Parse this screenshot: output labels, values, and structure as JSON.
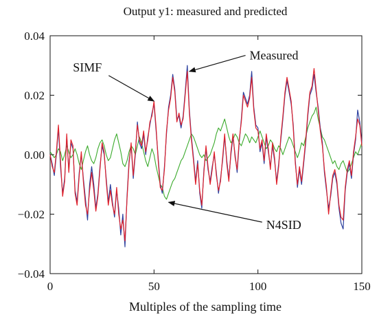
{
  "chart_data": {
    "type": "line",
    "title": "Output y1: measured and predicted",
    "xlabel": "Multiples of the sampling time",
    "ylabel": "",
    "xlim": [
      0,
      150
    ],
    "ylim": [
      -0.04,
      0.04
    ],
    "xticks": [
      0,
      50,
      100,
      150
    ],
    "xtick_labels": [
      "0",
      "50",
      "100",
      "150"
    ],
    "yticks": [
      0.04,
      0.02,
      0.0,
      -0.02,
      -0.04
    ],
    "ytick_labels": [
      "0.04",
      "0.02",
      "0.00",
      "−0.02",
      "−0.04"
    ],
    "grid": false,
    "x": [
      0,
      1,
      2,
      3,
      4,
      5,
      6,
      7,
      8,
      9,
      10,
      11,
      12,
      13,
      14,
      15,
      16,
      17,
      18,
      19,
      20,
      21,
      22,
      23,
      24,
      25,
      26,
      27,
      28,
      29,
      30,
      31,
      32,
      33,
      34,
      35,
      36,
      37,
      38,
      39,
      40,
      41,
      42,
      43,
      44,
      45,
      46,
      47,
      48,
      49,
      50,
      51,
      52,
      53,
      54,
      55,
      56,
      57,
      58,
      59,
      60,
      61,
      62,
      63,
      64,
      65,
      66,
      67,
      68,
      69,
      70,
      71,
      72,
      73,
      74,
      75,
      76,
      77,
      78,
      79,
      80,
      81,
      82,
      83,
      84,
      85,
      86,
      87,
      88,
      89,
      90,
      91,
      92,
      93,
      94,
      95,
      96,
      97,
      98,
      99,
      100,
      101,
      102,
      103,
      104,
      105,
      106,
      107,
      108,
      109,
      110,
      111,
      112,
      113,
      114,
      115,
      116,
      117,
      118,
      119,
      120,
      121,
      122,
      123,
      124,
      125,
      126,
      127,
      128,
      129,
      130,
      131,
      132,
      133,
      134,
      135,
      136,
      137,
      138,
      139,
      140,
      141,
      142,
      143,
      144,
      145,
      146,
      147,
      148,
      149,
      150
    ],
    "series": [
      {
        "name": "Measured",
        "color": "#2b3f9e",
        "values": [
          0.0,
          -0.003,
          -0.007,
          0.0,
          0.009,
          -0.004,
          -0.013,
          -0.008,
          0.006,
          -0.005,
          0.004,
          0.002,
          -0.012,
          -0.016,
          -0.006,
          0.0,
          -0.008,
          -0.015,
          -0.022,
          -0.01,
          -0.004,
          -0.01,
          -0.018,
          -0.013,
          -0.004,
          0.003,
          0.0,
          -0.008,
          -0.016,
          -0.01,
          -0.016,
          -0.021,
          -0.012,
          -0.018,
          -0.027,
          -0.02,
          -0.031,
          -0.014,
          -0.002,
          0.003,
          -0.008,
          0.0,
          0.011,
          0.004,
          0.002,
          0.007,
          0.0,
          0.006,
          0.01,
          0.014,
          0.017,
          0.008,
          -0.001,
          -0.01,
          -0.013,
          -0.004,
          0.007,
          0.016,
          0.02,
          0.027,
          0.022,
          0.012,
          0.013,
          0.009,
          0.013,
          0.021,
          0.03,
          0.015,
          0.006,
          -0.001,
          -0.009,
          -0.002,
          -0.013,
          -0.018,
          -0.005,
          0.002,
          -0.005,
          -0.009,
          -0.004,
          0.0,
          -0.006,
          -0.013,
          -0.008,
          -0.002,
          0.006,
          -0.002,
          -0.008,
          0.0,
          0.006,
          0.0,
          -0.006,
          0.004,
          0.012,
          0.021,
          0.019,
          0.017,
          0.02,
          0.028,
          0.016,
          0.01,
          0.009,
          0.001,
          0.004,
          -0.003,
          0.006,
          0.001,
          -0.004,
          0.003,
          -0.002,
          -0.009,
          -0.003,
          0.005,
          0.012,
          0.02,
          0.025,
          0.021,
          0.017,
          0.01,
          -0.002,
          -0.011,
          -0.005,
          -0.01,
          -0.003,
          0.004,
          0.013,
          0.02,
          0.022,
          0.027,
          0.021,
          0.016,
          0.009,
          0.004,
          -0.006,
          -0.012,
          -0.018,
          -0.014,
          -0.008,
          -0.006,
          -0.01,
          -0.018,
          -0.023,
          -0.025,
          -0.012,
          -0.006,
          -0.003,
          -0.008,
          0.0,
          0.005,
          0.015,
          0.011,
          0.004
        ]
      },
      {
        "name": "SIMF",
        "color": "#e0202a",
        "values": [
          0.0,
          -0.004,
          -0.006,
          0.001,
          0.01,
          -0.002,
          -0.014,
          -0.009,
          0.007,
          -0.006,
          0.005,
          0.003,
          -0.013,
          -0.017,
          -0.007,
          0.001,
          -0.009,
          -0.017,
          -0.02,
          -0.012,
          -0.006,
          -0.012,
          -0.019,
          -0.014,
          -0.005,
          0.004,
          0.001,
          -0.009,
          -0.017,
          -0.012,
          -0.017,
          -0.02,
          -0.011,
          -0.02,
          -0.025,
          -0.022,
          -0.029,
          -0.015,
          -0.003,
          0.004,
          -0.007,
          0.001,
          0.01,
          0.005,
          0.003,
          0.008,
          0.001,
          0.005,
          0.011,
          0.013,
          0.018,
          0.009,
          -0.002,
          -0.011,
          -0.012,
          -0.005,
          0.008,
          0.015,
          0.019,
          0.026,
          0.021,
          0.011,
          0.014,
          0.01,
          0.012,
          0.02,
          0.028,
          0.014,
          0.005,
          -0.002,
          -0.01,
          -0.003,
          -0.012,
          -0.017,
          -0.006,
          0.003,
          -0.004,
          -0.01,
          -0.005,
          0.001,
          -0.007,
          -0.012,
          -0.009,
          -0.001,
          0.007,
          -0.003,
          -0.009,
          0.001,
          0.007,
          -0.001,
          -0.005,
          0.005,
          0.011,
          0.02,
          0.018,
          0.016,
          0.019,
          0.026,
          0.015,
          0.009,
          0.008,
          0.002,
          0.005,
          -0.002,
          0.007,
          0.002,
          -0.005,
          0.004,
          -0.001,
          -0.01,
          -0.004,
          0.006,
          0.013,
          0.021,
          0.026,
          0.022,
          0.018,
          0.009,
          -0.003,
          -0.01,
          -0.004,
          -0.009,
          -0.002,
          0.005,
          0.014,
          0.021,
          0.023,
          0.029,
          0.022,
          0.015,
          0.008,
          0.003,
          -0.005,
          -0.011,
          -0.02,
          -0.013,
          -0.007,
          -0.005,
          -0.009,
          -0.017,
          -0.021,
          -0.022,
          -0.011,
          -0.005,
          -0.002,
          -0.007,
          0.001,
          0.006,
          0.012,
          0.01,
          0.003
        ]
      },
      {
        "name": "N4SID",
        "color": "#3aaa2b",
        "values": [
          0.001,
          0.0,
          -0.001,
          0.0,
          0.002,
          0.001,
          -0.002,
          0.0,
          0.003,
          0.001,
          -0.001,
          0.0,
          0.002,
          0.0,
          -0.003,
          -0.005,
          -0.002,
          0.001,
          0.003,
          0.0,
          -0.002,
          -0.003,
          -0.001,
          0.002,
          0.004,
          0.005,
          0.003,
          0.0,
          -0.002,
          -0.001,
          0.002,
          0.005,
          0.007,
          0.004,
          0.001,
          -0.003,
          -0.004,
          -0.002,
          0.001,
          0.003,
          0.002,
          0.0,
          0.003,
          0.006,
          0.004,
          0.001,
          -0.002,
          -0.004,
          -0.001,
          0.002,
          0.0,
          -0.004,
          -0.007,
          -0.01,
          -0.011,
          -0.014,
          -0.015,
          -0.013,
          -0.011,
          -0.009,
          -0.008,
          -0.006,
          -0.004,
          -0.002,
          -0.001,
          0.001,
          0.003,
          0.005,
          0.007,
          0.006,
          0.004,
          0.002,
          0.0,
          -0.001,
          0.0,
          -0.002,
          -0.001,
          0.0,
          0.002,
          0.004,
          0.007,
          0.009,
          0.008,
          0.01,
          0.012,
          0.009,
          0.006,
          0.004,
          0.005,
          0.007,
          0.006,
          0.004,
          0.003,
          0.005,
          0.007,
          0.006,
          0.004,
          0.006,
          0.005,
          0.004,
          0.006,
          0.008,
          0.006,
          0.004,
          0.002,
          0.003,
          0.005,
          0.004,
          0.002,
          0.001,
          0.003,
          0.002,
          0.0,
          0.002,
          0.004,
          0.006,
          0.005,
          0.003,
          0.001,
          -0.001,
          0.001,
          0.004,
          0.003,
          0.006,
          0.009,
          0.011,
          0.013,
          0.014,
          0.016,
          0.012,
          0.009,
          0.006,
          0.005,
          0.003,
          0.001,
          -0.001,
          -0.003,
          -0.002,
          -0.004,
          -0.005,
          -0.003,
          -0.002,
          -0.004,
          -0.006,
          -0.005,
          -0.003,
          -0.001,
          0.001,
          0.0,
          0.002,
          0.004
        ]
      }
    ],
    "annotations": [
      {
        "text": "Measured",
        "point": [
          67,
          0.028
        ],
        "label_at": [
          96,
          0.032
        ]
      },
      {
        "text": "SIMF",
        "point": [
          50,
          0.018
        ],
        "label_at": [
          11,
          0.028
        ]
      },
      {
        "text": "N4SID",
        "point": [
          57,
          -0.016
        ],
        "label_at": [
          104,
          -0.025
        ]
      }
    ]
  }
}
